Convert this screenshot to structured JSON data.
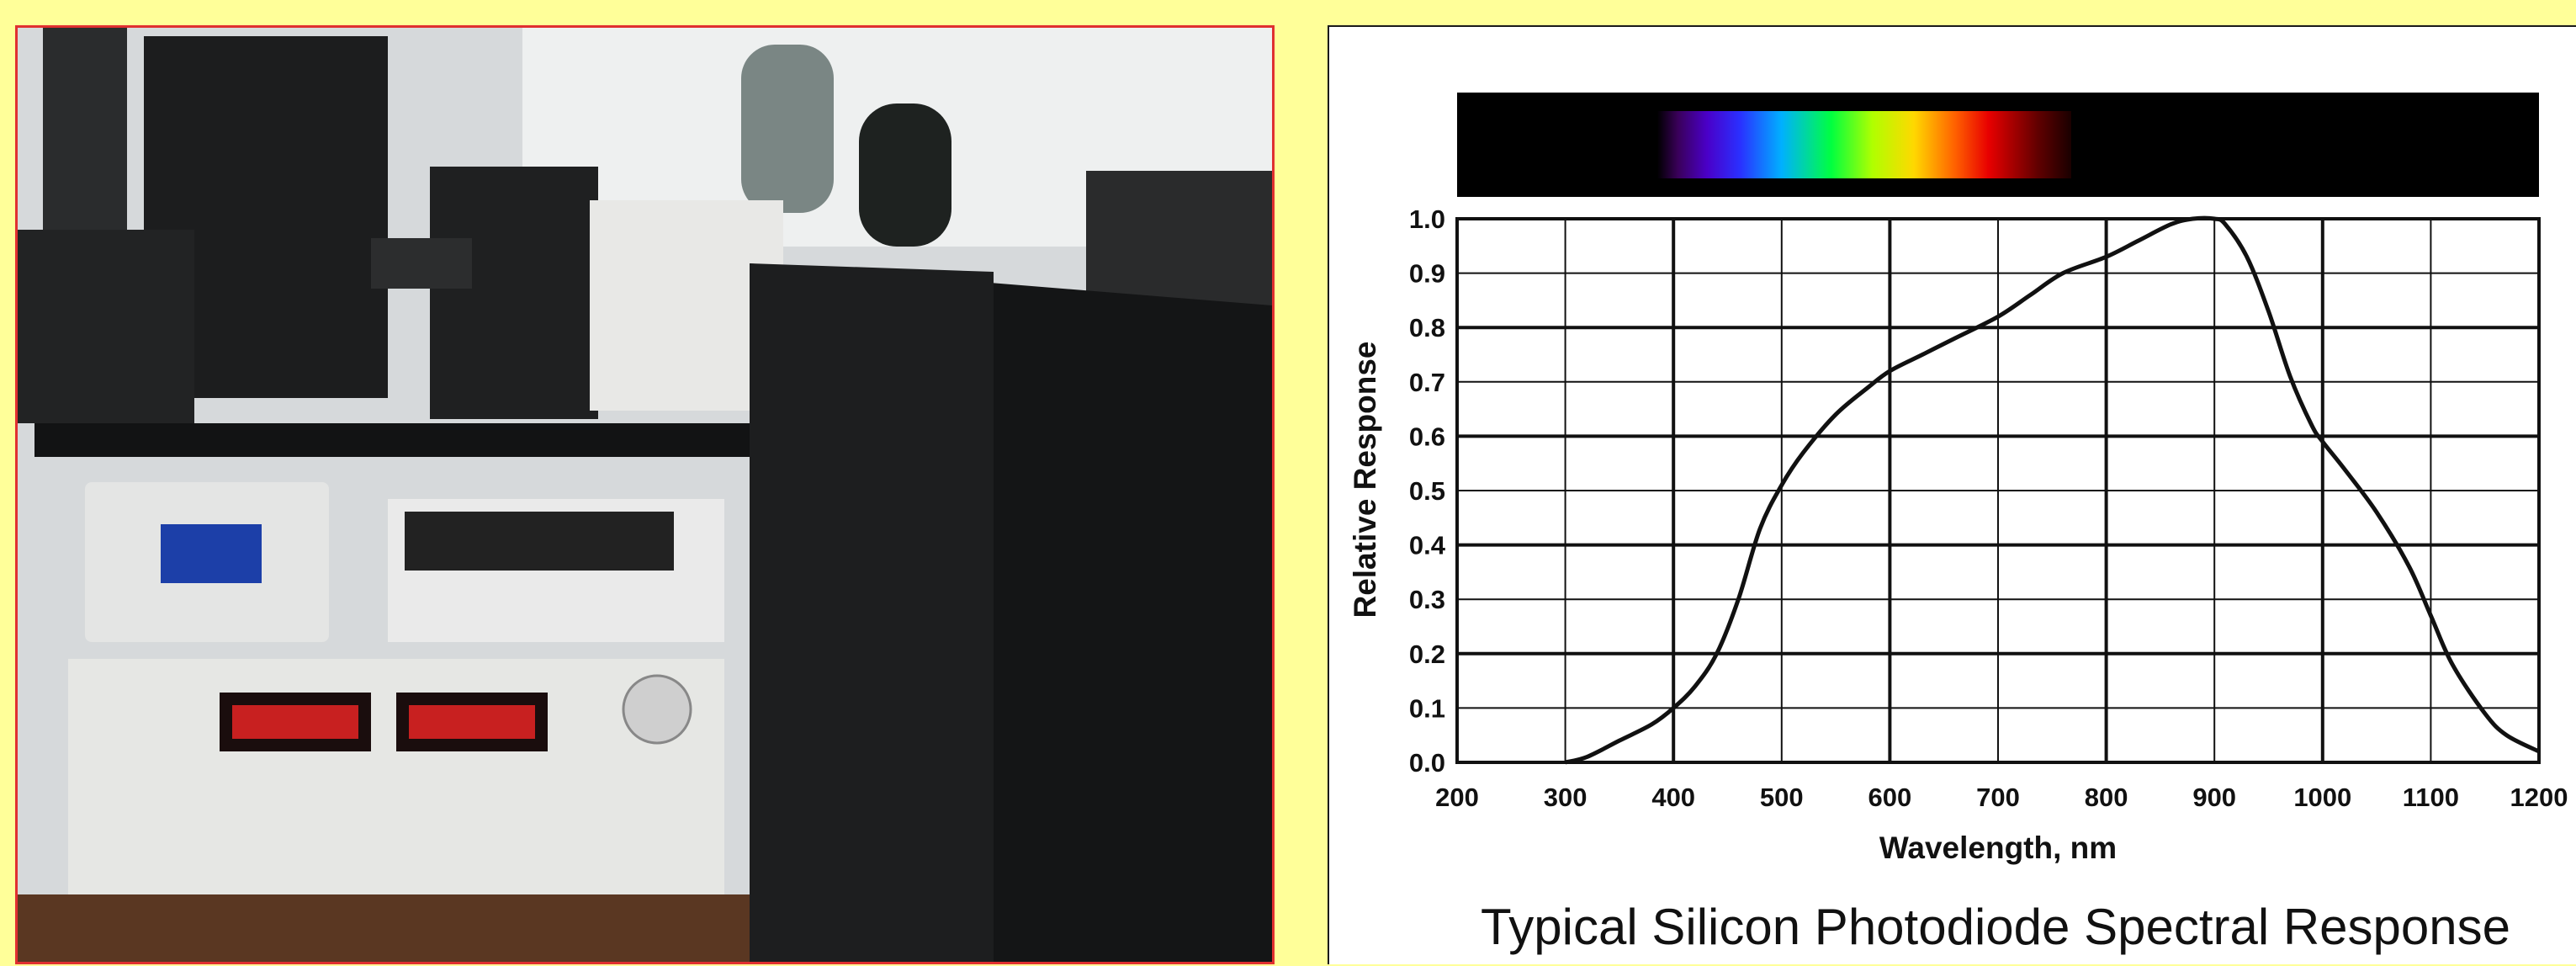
{
  "photo": {
    "description_icon": "lab-equipment-photo-icon"
  },
  "chart_data": {
    "type": "line",
    "title": "Typical Silicon Photodiode Spectral Response",
    "xlabel": "Wavelength, nm",
    "ylabel": "Relative Response",
    "xlim": [
      200,
      1200
    ],
    "ylim": [
      0.0,
      1.0
    ],
    "xticks": [
      "200",
      "300",
      "400",
      "500",
      "600",
      "700",
      "800",
      "900",
      "1000",
      "1100",
      "1200"
    ],
    "yticks": [
      "0.0",
      "0.1",
      "0.2",
      "0.3",
      "0.4",
      "0.5",
      "0.6",
      "0.7",
      "0.8",
      "0.9",
      "1.0"
    ],
    "grid": true,
    "spectrum_bar": {
      "visible_range": [
        380,
        760
      ]
    },
    "series": [
      {
        "x": [
          300,
          320,
          350,
          380,
          400,
          420,
          440,
          460,
          480,
          500,
          520,
          550,
          580,
          600,
          630,
          660,
          700,
          730,
          760,
          800,
          830,
          860,
          880,
          900,
          910,
          930,
          950,
          970,
          990,
          1000,
          1020,
          1050,
          1080,
          1100,
          1120,
          1150,
          1170,
          1200
        ],
        "y": [
          0.0,
          0.01,
          0.04,
          0.07,
          0.1,
          0.14,
          0.2,
          0.3,
          0.43,
          0.51,
          0.57,
          0.64,
          0.69,
          0.72,
          0.75,
          0.78,
          0.82,
          0.86,
          0.9,
          0.93,
          0.96,
          0.99,
          1.0,
          1.0,
          0.99,
          0.93,
          0.83,
          0.71,
          0.62,
          0.59,
          0.54,
          0.46,
          0.36,
          0.27,
          0.18,
          0.09,
          0.05,
          0.02
        ],
        "color": "#111111"
      }
    ]
  }
}
